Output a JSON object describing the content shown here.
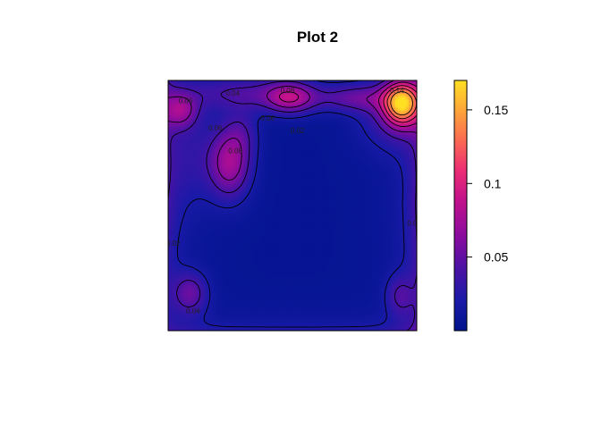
{
  "chart_data": {
    "type": "heatmap",
    "title": "Plot 2",
    "xlabel": "",
    "ylabel": "",
    "colorbar": {
      "range": [
        0.0,
        0.17
      ],
      "ticks": [
        0.05,
        0.1,
        0.15
      ],
      "tick_labels": [
        "0.05",
        "0.1",
        "0.15"
      ],
      "colors": [
        "#00148c",
        "#1a1aa8",
        "#4b12a4",
        "#8a0c9e",
        "#c1118c",
        "#ec2e74",
        "#fb6a52",
        "#fda53a",
        "#ffe022"
      ]
    },
    "contour_levels": [
      0.02,
      0.04,
      0.06,
      0.08,
      0.1,
      0.12,
      0.14
    ],
    "contour_labels": [
      {
        "text": "0.04",
        "x": 0.26,
        "y": 0.95
      },
      {
        "text": "0.06",
        "x": 0.07,
        "y": 0.92
      },
      {
        "text": "0.08",
        "x": 0.48,
        "y": 0.96
      },
      {
        "text": "0.06",
        "x": 0.4,
        "y": 0.85
      },
      {
        "text": "0.02",
        "x": 0.52,
        "y": 0.8
      },
      {
        "text": "0.06",
        "x": 0.19,
        "y": 0.81
      },
      {
        "text": "0.08",
        "x": 0.27,
        "y": 0.72
      },
      {
        "text": "0.04",
        "x": 0.1,
        "y": 0.08
      },
      {
        "text": "0.02",
        "x": 0.02,
        "y": 0.35
      },
      {
        "text": "0.02",
        "x": 0.99,
        "y": 0.43
      },
      {
        "text": "0.14",
        "x": 0.92,
        "y": 0.96
      }
    ],
    "peaks": [
      {
        "name": "top-right peak",
        "x": 0.94,
        "y": 0.91,
        "value": 0.165
      },
      {
        "name": "top-center peak",
        "x": 0.49,
        "y": 0.93,
        "value": 0.085
      },
      {
        "name": "upper-left ridge",
        "x": 0.25,
        "y": 0.67,
        "value": 0.09
      },
      {
        "name": "top-left blob",
        "x": 0.05,
        "y": 0.88,
        "value": 0.07
      },
      {
        "name": "bottom-left blob",
        "x": 0.09,
        "y": 0.15,
        "value": 0.05
      },
      {
        "name": "bottom-right blob",
        "x": 0.93,
        "y": 0.14,
        "value": 0.04
      }
    ],
    "background_value": 0.005
  }
}
